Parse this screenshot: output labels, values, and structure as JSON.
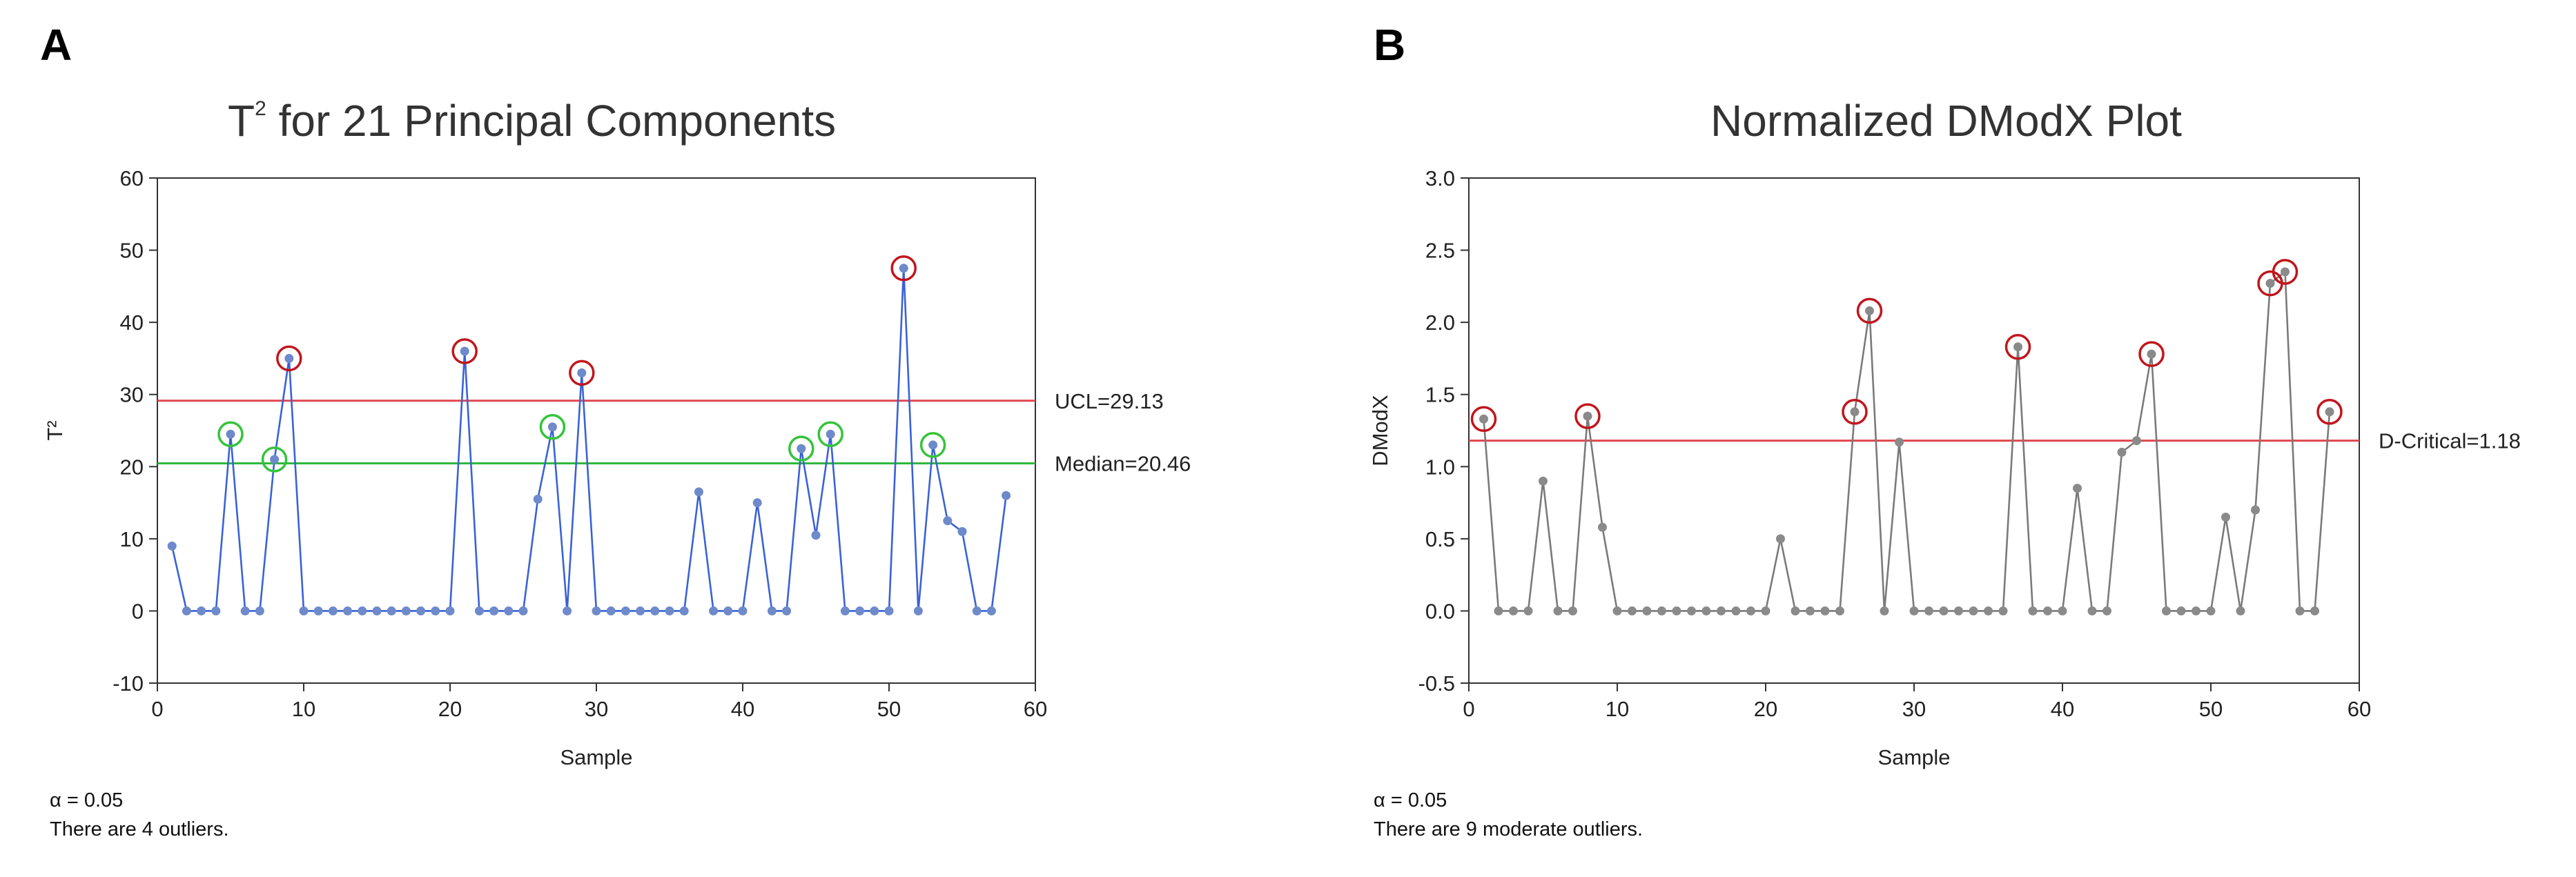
{
  "panels": {
    "a": {
      "letter": "A",
      "note_alpha": "α = 0.05",
      "note_outliers": "There are 4 outliers."
    },
    "b": {
      "letter": "B",
      "note_alpha": "α = 0.05",
      "note_outliers": "There are 9 moderate outliers."
    }
  },
  "chart_data": [
    {
      "id": "t2",
      "type": "line",
      "title_main": "T",
      "title_sup": "2",
      "title_rest": " for 21 Principal Components",
      "xlabel": "Sample",
      "ylabel": "T²",
      "xlim": [
        0,
        60
      ],
      "ylim": [
        -10,
        60
      ],
      "xticks": [
        0,
        10,
        20,
        30,
        40,
        50,
        60
      ],
      "yticks": [
        -10,
        0,
        10,
        20,
        30,
        40,
        50,
        60
      ],
      "yticklabels": [
        "-10",
        "0",
        "10",
        "20",
        "30",
        "40",
        "50",
        "60"
      ],
      "line_color": "#3a62d6",
      "point_color": "#6e8acb",
      "x": [
        1,
        2,
        3,
        4,
        5,
        6,
        7,
        8,
        9,
        10,
        11,
        12,
        13,
        14,
        15,
        16,
        17,
        18,
        19,
        20,
        21,
        22,
        23,
        24,
        25,
        26,
        27,
        28,
        29,
        30,
        31,
        32,
        33,
        34,
        35,
        36,
        37,
        38,
        39,
        40,
        41,
        42,
        43,
        44,
        45,
        46,
        47,
        48,
        49,
        50,
        51,
        52,
        53,
        54,
        55,
        56,
        57,
        58
      ],
      "y": [
        9,
        0,
        0,
        0,
        24.5,
        0,
        0,
        21,
        35,
        0,
        0,
        0,
        0,
        0,
        0,
        0,
        0,
        0,
        0,
        0,
        36,
        0,
        0,
        0,
        0,
        15.5,
        25.5,
        0,
        33,
        0,
        0,
        0,
        0,
        0,
        0,
        0,
        16.5,
        0,
        0,
        0,
        15,
        0,
        0,
        22.5,
        10.5,
        24.5,
        0,
        0,
        0,
        0,
        47.5,
        0,
        23,
        12.5,
        11,
        0,
        0,
        16
      ],
      "reference_lines": [
        {
          "name": "UCL",
          "label": "UCL=29.13",
          "value": 29.13,
          "color": "#e0474c"
        },
        {
          "name": "Median",
          "label": "Median=20.46",
          "value": 20.46,
          "color": "#2fb83b"
        }
      ],
      "red_circled_x": [
        9,
        21,
        29,
        51
      ],
      "green_circled_x": [
        5,
        8,
        27,
        44,
        46,
        53
      ],
      "red_circle_color": "#c0161c",
      "green_circle_color": "#34c43a"
    },
    {
      "id": "dmodx",
      "type": "line",
      "title_main": "Normalized DModX Plot",
      "xlabel": "Sample",
      "ylabel": "DModX",
      "xlim": [
        0,
        60
      ],
      "ylim": [
        -0.5,
        3.0
      ],
      "xticks": [
        0,
        10,
        20,
        30,
        40,
        50,
        60
      ],
      "yticks": [
        -0.5,
        0,
        0.5,
        1.0,
        1.5,
        2.0,
        2.5,
        3.0
      ],
      "yticklabels": [
        "-0.5",
        "0.0",
        "0.5",
        "1.0",
        "1.5",
        "2.0",
        "2.5",
        "3.0"
      ],
      "line_color": "#7a7a7a",
      "point_color": "#8a8a8a",
      "x": [
        1,
        2,
        3,
        4,
        5,
        6,
        7,
        8,
        9,
        10,
        11,
        12,
        13,
        14,
        15,
        16,
        17,
        18,
        19,
        20,
        21,
        22,
        23,
        24,
        25,
        26,
        27,
        28,
        29,
        30,
        31,
        32,
        33,
        34,
        35,
        36,
        37,
        38,
        39,
        40,
        41,
        42,
        43,
        44,
        45,
        46,
        47,
        48,
        49,
        50,
        51,
        52,
        53,
        54,
        55,
        56,
        57,
        58
      ],
      "y": [
        1.33,
        0,
        0,
        0,
        0.9,
        0,
        0,
        1.35,
        0.58,
        0,
        0,
        0,
        0,
        0,
        0,
        0,
        0,
        0,
        0,
        0,
        0.5,
        0,
        0,
        0,
        0,
        1.38,
        2.08,
        0,
        1.17,
        0,
        0,
        0,
        0,
        0,
        0,
        0,
        1.83,
        0,
        0,
        0,
        0.85,
        0,
        0,
        1.1,
        1.18,
        1.78,
        0,
        0,
        0,
        0,
        0.65,
        0,
        0.7,
        2.27,
        2.35,
        0,
        0,
        1.38
      ],
      "reference_lines": [
        {
          "name": "D-Critical",
          "label": "D-Critical=1.18",
          "value": 1.18,
          "color": "#e0474c"
        }
      ],
      "red_circled_x": [
        1,
        8,
        26,
        27,
        37,
        46,
        54,
        55,
        58
      ],
      "green_circled_x": [],
      "red_circle_color": "#c0161c",
      "green_circle_color": "#34c43a"
    }
  ]
}
